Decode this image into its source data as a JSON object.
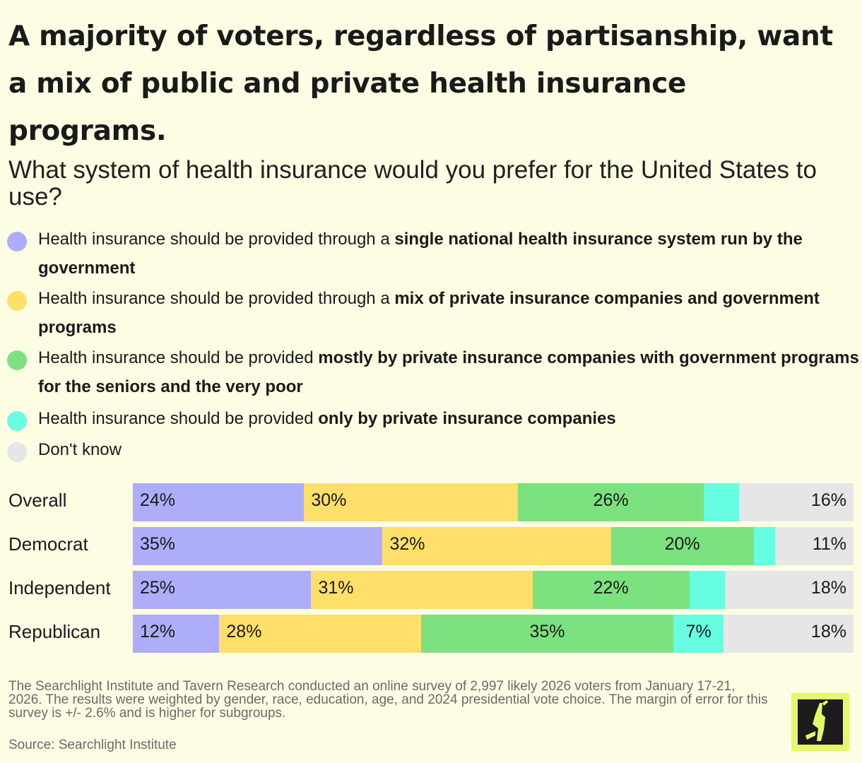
{
  "title": "A majority of voters, regardless of partisanship, want a mix of public and private health insurance programs.",
  "subtitle": "What system of health insurance would you prefer for the United States to use?",
  "legend": [
    {
      "prefix": "Health insurance should be provided through a ",
      "bold": "single national health insurance system run by the government",
      "color": "#aeadfa"
    },
    {
      "prefix": "Health insurance should be provided through a ",
      "bold": "mix of private insurance companies and government programs",
      "color": "#fddf69"
    },
    {
      "prefix": "Health insurance should be provided ",
      "bold": "mostly by private insurance companies with government programs for the seniors and the very poor",
      "color": "#7ce17f"
    },
    {
      "prefix": "Health insurance should be provided ",
      "bold": "only by private insurance companies",
      "color": "#66fde0"
    },
    {
      "prefix": "Don't know",
      "bold": "",
      "color": "#e6e6e6"
    }
  ],
  "chart_data": {
    "type": "bar",
    "orientation": "horizontal",
    "stacked": true,
    "categories": [
      "Overall",
      "Democrat",
      "Independent",
      "Republican"
    ],
    "series": [
      {
        "name": "Health insurance should be provided through a single national health insurance system run by the government",
        "color": "#aeadfa",
        "values": [
          24,
          35,
          25,
          12
        ],
        "labels": [
          "24%",
          "35%",
          "25%",
          "12%"
        ]
      },
      {
        "name": "Health insurance should be provided through a mix of private insurance companies and government programs",
        "color": "#fddf69",
        "values": [
          30,
          32,
          31,
          28
        ],
        "labels": [
          "30%",
          "32%",
          "31%",
          "28%"
        ]
      },
      {
        "name": "Health insurance should be provided mostly by private insurance companies with government programs for the seniors and the very poor",
        "color": "#7ce17f",
        "values": [
          26,
          20,
          22,
          35
        ],
        "labels": [
          "26%",
          "20%",
          "22%",
          "35%"
        ]
      },
      {
        "name": "Health insurance should be provided only by private insurance companies",
        "color": "#66fde0",
        "values": [
          5,
          3,
          5,
          7
        ],
        "labels": [
          "",
          "",
          "",
          "7%"
        ]
      },
      {
        "name": "Don't know",
        "color": "#e6e6e6",
        "values": [
          16,
          11,
          18,
          18
        ],
        "labels": [
          "16%",
          "11%",
          "18%",
          "18%"
        ]
      }
    ]
  },
  "footnote": "The Searchlight Institute and Tavern Research conducted an online survey of 2,997 likely 2026 voters from January 17-21, 2026. The results were weighted by gender, race, education, age, and 2024 presidential vote choice. The margin of error for this survey is +/- 2.6% and is higher for subgroups.",
  "source": "Source: Searchlight Institute",
  "logo_icon": "searchlight-figure-icon"
}
